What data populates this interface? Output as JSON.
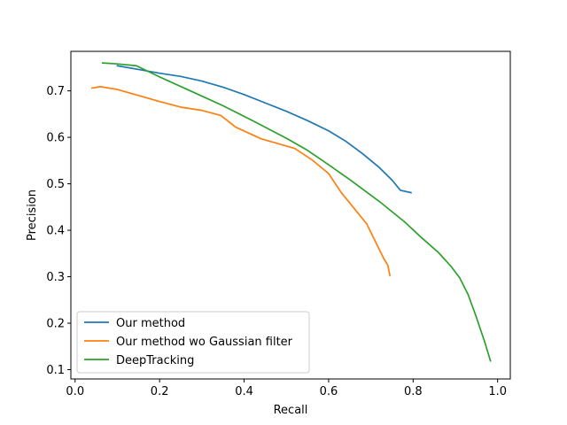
{
  "chart_data": {
    "type": "line",
    "xlabel": "Recall",
    "ylabel": "Precision",
    "xlim": [
      -0.01,
      1.03
    ],
    "ylim": [
      0.08,
      0.785
    ],
    "x_ticks": [
      "0.0",
      "0.2",
      "0.4",
      "0.6",
      "0.8",
      "1.0"
    ],
    "y_ticks": [
      "0.1",
      "0.2",
      "0.3",
      "0.4",
      "0.5",
      "0.6",
      "0.7"
    ],
    "grid": false,
    "legend_position": "lower-left",
    "series": [
      {
        "name": "Our method",
        "color": "#1f77b4",
        "x": [
          0.1,
          0.15,
          0.2,
          0.25,
          0.3,
          0.35,
          0.4,
          0.45,
          0.5,
          0.55,
          0.6,
          0.64,
          0.68,
          0.72,
          0.75,
          0.77,
          0.795
        ],
        "y": [
          0.754,
          0.746,
          0.738,
          0.731,
          0.721,
          0.708,
          0.692,
          0.674,
          0.656,
          0.636,
          0.614,
          0.592,
          0.565,
          0.535,
          0.508,
          0.486,
          0.481
        ]
      },
      {
        "name": "Our method wo Gaussian filter",
        "color": "#ff7f0e",
        "x": [
          0.04,
          0.06,
          0.1,
          0.15,
          0.2,
          0.25,
          0.3,
          0.345,
          0.38,
          0.44,
          0.52,
          0.56,
          0.6,
          0.63,
          0.69,
          0.73,
          0.74,
          0.745
        ],
        "y": [
          0.706,
          0.709,
          0.703,
          0.69,
          0.677,
          0.665,
          0.658,
          0.647,
          0.622,
          0.597,
          0.576,
          0.552,
          0.522,
          0.481,
          0.414,
          0.34,
          0.325,
          0.303
        ]
      },
      {
        "name": "DeepTracking",
        "color": "#2ca02c",
        "x": [
          0.065,
          0.1,
          0.145,
          0.2,
          0.28,
          0.35,
          0.42,
          0.5,
          0.55,
          0.6,
          0.65,
          0.72,
          0.78,
          0.82,
          0.86,
          0.89,
          0.91,
          0.93,
          0.95,
          0.97,
          0.983
        ],
        "y": [
          0.76,
          0.758,
          0.754,
          0.73,
          0.697,
          0.668,
          0.636,
          0.598,
          0.572,
          0.541,
          0.509,
          0.462,
          0.418,
          0.384,
          0.352,
          0.322,
          0.298,
          0.262,
          0.212,
          0.158,
          0.119
        ]
      }
    ]
  }
}
